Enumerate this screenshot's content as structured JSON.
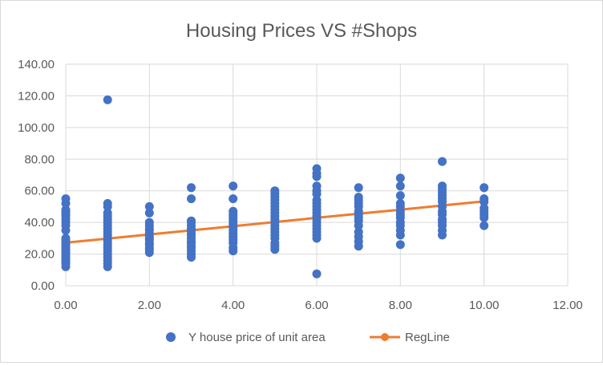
{
  "chart_data": {
    "type": "scatter",
    "title": "Housing Prices VS #Shops",
    "xlabel": "",
    "ylabel": "",
    "xlim": [
      0,
      12
    ],
    "ylim": [
      0,
      140
    ],
    "x_ticks": [
      "0.00",
      "2.00",
      "4.00",
      "6.00",
      "8.00",
      "10.00",
      "12.00"
    ],
    "y_ticks": [
      "0.00",
      "20.00",
      "40.00",
      "60.00",
      "80.00",
      "100.00",
      "120.00",
      "140.00"
    ],
    "grid": true,
    "legend_position": "bottom",
    "colors": {
      "scatter": "#4472c4",
      "regline": "#ed7d31",
      "grid": "#d9d9d9",
      "text": "#595959"
    },
    "series": [
      {
        "name": "Y house price of unit area",
        "kind": "scatter",
        "points": [
          [
            0,
            12
          ],
          [
            0,
            14
          ],
          [
            0,
            15
          ],
          [
            0,
            16
          ],
          [
            0,
            17
          ],
          [
            0,
            18
          ],
          [
            0,
            19
          ],
          [
            0,
            20
          ],
          [
            0,
            21
          ],
          [
            0,
            22
          ],
          [
            0,
            23
          ],
          [
            0,
            24
          ],
          [
            0,
            25
          ],
          [
            0,
            26
          ],
          [
            0,
            27
          ],
          [
            0,
            28
          ],
          [
            0,
            29
          ],
          [
            0,
            30
          ],
          [
            0,
            35
          ],
          [
            0,
            38
          ],
          [
            0,
            40
          ],
          [
            0,
            42
          ],
          [
            0,
            44
          ],
          [
            0,
            45
          ],
          [
            0,
            46
          ],
          [
            0,
            47
          ],
          [
            0,
            48
          ],
          [
            0,
            52
          ],
          [
            0,
            55
          ],
          [
            1,
            12
          ],
          [
            1,
            14
          ],
          [
            1,
            16
          ],
          [
            1,
            18
          ],
          [
            1,
            20
          ],
          [
            1,
            22
          ],
          [
            1,
            24
          ],
          [
            1,
            26
          ],
          [
            1,
            28
          ],
          [
            1,
            30
          ],
          [
            1,
            32
          ],
          [
            1,
            34
          ],
          [
            1,
            36
          ],
          [
            1,
            38
          ],
          [
            1,
            40
          ],
          [
            1,
            42
          ],
          [
            1,
            44
          ],
          [
            1,
            46
          ],
          [
            1,
            50
          ],
          [
            1,
            52
          ],
          [
            1,
            117.5
          ],
          [
            2,
            21
          ],
          [
            2,
            23
          ],
          [
            2,
            24
          ],
          [
            2,
            26
          ],
          [
            2,
            27
          ],
          [
            2,
            29
          ],
          [
            2,
            30
          ],
          [
            2,
            31
          ],
          [
            2,
            33
          ],
          [
            2,
            35
          ],
          [
            2,
            36
          ],
          [
            2,
            38
          ],
          [
            2,
            40
          ],
          [
            2,
            46
          ],
          [
            2,
            50
          ],
          [
            3,
            18
          ],
          [
            3,
            20
          ],
          [
            3,
            22
          ],
          [
            3,
            24
          ],
          [
            3,
            25
          ],
          [
            3,
            27
          ],
          [
            3,
            28
          ],
          [
            3,
            30
          ],
          [
            3,
            32
          ],
          [
            3,
            33
          ],
          [
            3,
            35
          ],
          [
            3,
            36
          ],
          [
            3,
            38
          ],
          [
            3,
            40
          ],
          [
            3,
            41
          ],
          [
            3,
            55
          ],
          [
            3,
            62
          ],
          [
            4,
            22
          ],
          [
            4,
            24
          ],
          [
            4,
            27
          ],
          [
            4,
            29
          ],
          [
            4,
            31
          ],
          [
            4,
            33
          ],
          [
            4,
            35
          ],
          [
            4,
            37
          ],
          [
            4,
            39
          ],
          [
            4,
            41
          ],
          [
            4,
            43
          ],
          [
            4,
            45
          ],
          [
            4,
            47
          ],
          [
            4,
            55
          ],
          [
            4,
            63
          ],
          [
            5,
            23
          ],
          [
            5,
            25
          ],
          [
            5,
            27
          ],
          [
            5,
            30
          ],
          [
            5,
            32
          ],
          [
            5,
            34
          ],
          [
            5,
            36
          ],
          [
            5,
            38
          ],
          [
            5,
            40
          ],
          [
            5,
            42
          ],
          [
            5,
            44
          ],
          [
            5,
            46
          ],
          [
            5,
            48
          ],
          [
            5,
            50
          ],
          [
            5,
            52
          ],
          [
            5,
            54
          ],
          [
            5,
            56
          ],
          [
            5,
            58
          ],
          [
            5,
            60
          ],
          [
            6,
            7.5
          ],
          [
            6,
            30
          ],
          [
            6,
            32
          ],
          [
            6,
            34
          ],
          [
            6,
            36
          ],
          [
            6,
            38
          ],
          [
            6,
            40
          ],
          [
            6,
            42
          ],
          [
            6,
            44
          ],
          [
            6,
            46
          ],
          [
            6,
            48
          ],
          [
            6,
            50
          ],
          [
            6,
            52
          ],
          [
            6,
            54
          ],
          [
            6,
            58
          ],
          [
            6,
            60
          ],
          [
            6,
            63
          ],
          [
            6,
            69
          ],
          [
            6,
            71
          ],
          [
            6,
            74
          ],
          [
            7,
            25
          ],
          [
            7,
            28
          ],
          [
            7,
            31
          ],
          [
            7,
            34
          ],
          [
            7,
            38
          ],
          [
            7,
            41
          ],
          [
            7,
            43
          ],
          [
            7,
            45
          ],
          [
            7,
            47
          ],
          [
            7,
            50
          ],
          [
            7,
            52
          ],
          [
            7,
            54
          ],
          [
            7,
            56
          ],
          [
            7,
            62
          ],
          [
            8,
            26
          ],
          [
            8,
            32
          ],
          [
            8,
            35
          ],
          [
            8,
            38
          ],
          [
            8,
            40
          ],
          [
            8,
            43
          ],
          [
            8,
            45
          ],
          [
            8,
            47
          ],
          [
            8,
            50
          ],
          [
            8,
            52
          ],
          [
            8,
            57
          ],
          [
            8,
            63
          ],
          [
            8,
            68
          ],
          [
            9,
            32
          ],
          [
            9,
            35
          ],
          [
            9,
            38
          ],
          [
            9,
            40
          ],
          [
            9,
            42
          ],
          [
            9,
            45
          ],
          [
            9,
            47
          ],
          [
            9,
            50
          ],
          [
            9,
            53
          ],
          [
            9,
            55
          ],
          [
            9,
            57
          ],
          [
            9,
            59
          ],
          [
            9,
            61
          ],
          [
            9,
            63
          ],
          [
            9,
            78.5
          ],
          [
            10,
            38
          ],
          [
            10,
            43
          ],
          [
            10,
            45
          ],
          [
            10,
            47
          ],
          [
            10,
            49
          ],
          [
            10,
            53
          ],
          [
            10,
            55
          ],
          [
            10,
            62
          ]
        ]
      },
      {
        "name": "RegLine",
        "kind": "line",
        "points": [
          [
            0,
            27.2
          ],
          [
            1,
            29.8
          ],
          [
            2,
            32.4
          ],
          [
            3,
            35.0
          ],
          [
            4,
            37.6
          ],
          [
            5,
            40.3
          ],
          [
            6,
            42.9
          ],
          [
            7,
            45.5
          ],
          [
            8,
            48.1
          ],
          [
            9,
            50.7
          ],
          [
            10,
            53.3
          ]
        ]
      }
    ]
  }
}
